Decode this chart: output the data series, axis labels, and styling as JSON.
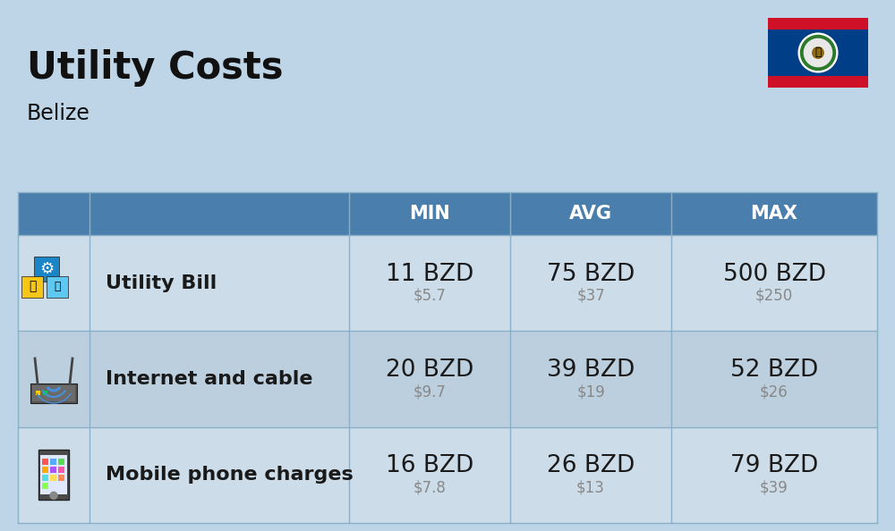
{
  "title": "Utility Costs",
  "subtitle": "Belize",
  "background_color": "#bdd5e7",
  "header_bg_color": "#4a7fad",
  "header_text_color": "#ffffff",
  "row_bg_color_1": "#ccdde9",
  "row_bg_color_2": "#bccfde",
  "table_border_color": "#8aafc8",
  "rows": [
    {
      "icon": "utility",
      "label": "Utility Bill",
      "min_bzd": "11 BZD",
      "min_usd": "$5.7",
      "avg_bzd": "75 BZD",
      "avg_usd": "$37",
      "max_bzd": "500 BZD",
      "max_usd": "$250"
    },
    {
      "icon": "internet",
      "label": "Internet and cable",
      "min_bzd": "20 BZD",
      "min_usd": "$9.7",
      "avg_bzd": "39 BZD",
      "avg_usd": "$19",
      "max_bzd": "52 BZD",
      "max_usd": "$26"
    },
    {
      "icon": "mobile",
      "label": "Mobile phone charges",
      "min_bzd": "16 BZD",
      "min_usd": "$7.8",
      "avg_bzd": "26 BZD",
      "avg_usd": "$13",
      "max_bzd": "79 BZD",
      "max_usd": "$39"
    }
  ],
  "bzd_color": "#1a1a1a",
  "usd_color": "#888888",
  "label_color": "#1a1a1a",
  "title_fontsize": 30,
  "subtitle_fontsize": 17,
  "header_fontsize": 15,
  "cell_fontsize_bzd": 19,
  "cell_fontsize_usd": 12,
  "label_fontsize": 16,
  "flag_blue": "#003f87",
  "flag_red": "#ce1126",
  "flag_white": "#ffffff"
}
